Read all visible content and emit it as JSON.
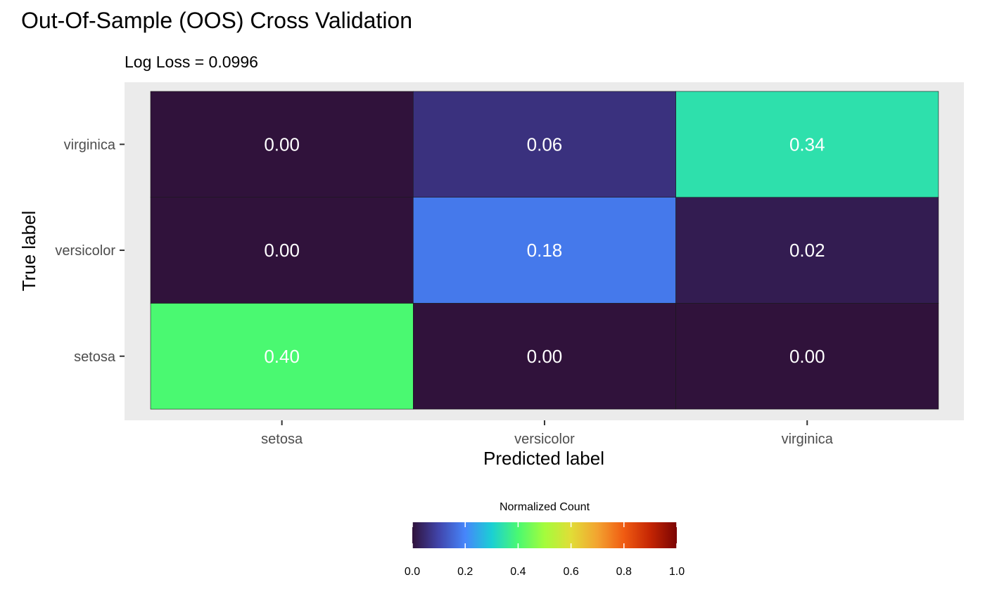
{
  "chart_data": {
    "type": "heatmap",
    "title": "Out-Of-Sample (OOS) Cross Validation",
    "subtitle": "Log Loss = 0.0996",
    "xlabel": "Predicted label",
    "ylabel": "True label",
    "x_categories": [
      "setosa",
      "versicolor",
      "virginica"
    ],
    "y_categories": [
      "setosa",
      "versicolor",
      "virginica"
    ],
    "values": [
      [
        0.4,
        0.0,
        0.0
      ],
      [
        0.0,
        0.18,
        0.02
      ],
      [
        0.0,
        0.06,
        0.34
      ]
    ],
    "cell_labels": [
      [
        "0.40",
        "0.00",
        "0.00"
      ],
      [
        "0.00",
        "0.18",
        "0.02"
      ],
      [
        "0.00",
        "0.06",
        "0.34"
      ]
    ],
    "legend": {
      "title": "Normalized Count",
      "position": "bottom",
      "range": [
        0,
        1
      ],
      "ticks": [
        "0.0",
        "0.2",
        "0.4",
        "0.6",
        "0.8",
        "1.0"
      ],
      "colors": [
        "#30123B",
        "#4145AB",
        "#4686FB",
        "#1BCFD4",
        "#4AF971",
        "#A4FC3C",
        "#E1DD37",
        "#F3A330",
        "#F05B12",
        "#C42503",
        "#7A0403"
      ]
    },
    "panel_background": "#EBEBEB",
    "grid": false
  }
}
